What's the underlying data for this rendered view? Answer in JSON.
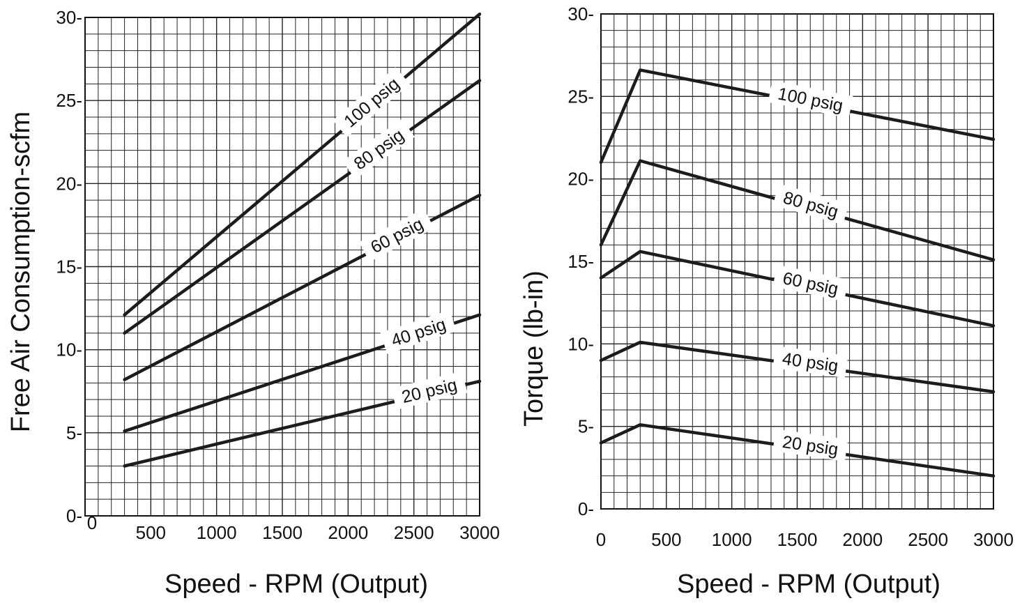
{
  "chart_data": [
    {
      "type": "line",
      "title": "",
      "xlabel": "Speed - RPM (Output)",
      "ylabel": "Free Air Consumption-scfm",
      "xlim": [
        0,
        3000
      ],
      "ylim": [
        0,
        30
      ],
      "grid": true,
      "legend": "inline labels on curves",
      "x_ticks": [
        "0",
        "500",
        "1000",
        "1500",
        "2000",
        "2500",
        "3000"
      ],
      "y_ticks": [
        "0-",
        "5-",
        "10-",
        "15-",
        "20-",
        "25-",
        "30-"
      ],
      "series": [
        {
          "name": "100 psig",
          "x": [
            300,
            3000
          ],
          "y": [
            12.1,
            30.2
          ]
        },
        {
          "name": "80 psig",
          "x": [
            300,
            3000
          ],
          "y": [
            11.0,
            26.2
          ]
        },
        {
          "name": "60 psig",
          "x": [
            300,
            3000
          ],
          "y": [
            8.2,
            19.3
          ]
        },
        {
          "name": "40 psig",
          "x": [
            300,
            3000
          ],
          "y": [
            5.1,
            12.1
          ]
        },
        {
          "name": "20 psig",
          "x": [
            300,
            3000
          ],
          "y": [
            3.0,
            8.1
          ]
        }
      ]
    },
    {
      "type": "line",
      "title": "",
      "xlabel": "Speed - RPM (Output)",
      "ylabel": "Torque (lb-in)",
      "xlim": [
        0,
        3000
      ],
      "ylim": [
        0,
        30
      ],
      "grid": true,
      "legend": "inline labels on curves",
      "x_ticks": [
        "0",
        "500",
        "1000",
        "1500",
        "2000",
        "2500",
        "3000"
      ],
      "y_ticks": [
        "0-",
        "5-",
        "10-",
        "15-",
        "20-",
        "25-",
        "30-"
      ],
      "series": [
        {
          "name": "100 psig",
          "x": [
            0,
            300,
            3000
          ],
          "y": [
            21.0,
            26.6,
            22.4
          ]
        },
        {
          "name": "80 psig",
          "x": [
            0,
            300,
            3000
          ],
          "y": [
            16.0,
            21.1,
            15.1
          ]
        },
        {
          "name": "60 psig",
          "x": [
            0,
            300,
            3000
          ],
          "y": [
            14.0,
            15.6,
            11.1
          ]
        },
        {
          "name": "40 psig",
          "x": [
            0,
            300,
            3000
          ],
          "y": [
            9.0,
            10.1,
            7.1
          ]
        },
        {
          "name": "20 psig",
          "x": [
            0,
            300,
            3000
          ],
          "y": [
            4.0,
            5.1,
            2.0
          ]
        }
      ]
    }
  ]
}
